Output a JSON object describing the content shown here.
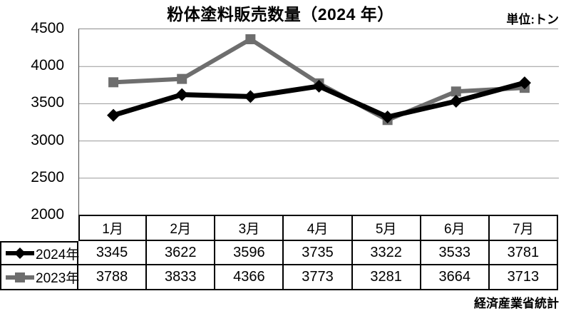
{
  "title": "粉体塗料販売数量（2024 年）",
  "unit_label": "単位:トン",
  "source_label": "経済産業省統計",
  "colors": {
    "series_2024": "#000000",
    "series_2023": "#6e6e6e",
    "gridline": "#999999",
    "table_border": "#000000",
    "background": "#ffffff"
  },
  "chart_data": {
    "type": "line",
    "title": "粉体塗料販売数量（2024 年）",
    "categories": [
      "1月",
      "2月",
      "3月",
      "4月",
      "5月",
      "6月",
      "7月"
    ],
    "series": [
      {
        "name": "2024年",
        "marker": "diamond",
        "color": "#000000",
        "values": [
          3345,
          3622,
          3596,
          3735,
          3322,
          3533,
          3781
        ]
      },
      {
        "name": "2023年",
        "marker": "square",
        "color": "#6e6e6e",
        "values": [
          3788,
          3833,
          4366,
          3773,
          3281,
          3664,
          3713
        ]
      }
    ],
    "ylim": [
      2000,
      4500
    ],
    "ytick_interval": 500,
    "ytick_labels": [
      "4500",
      "4000",
      "3500",
      "3000",
      "2500",
      "2000"
    ],
    "grid": true,
    "legend_position": "table-left",
    "unit": "トン",
    "source": "経済産業省統計"
  }
}
